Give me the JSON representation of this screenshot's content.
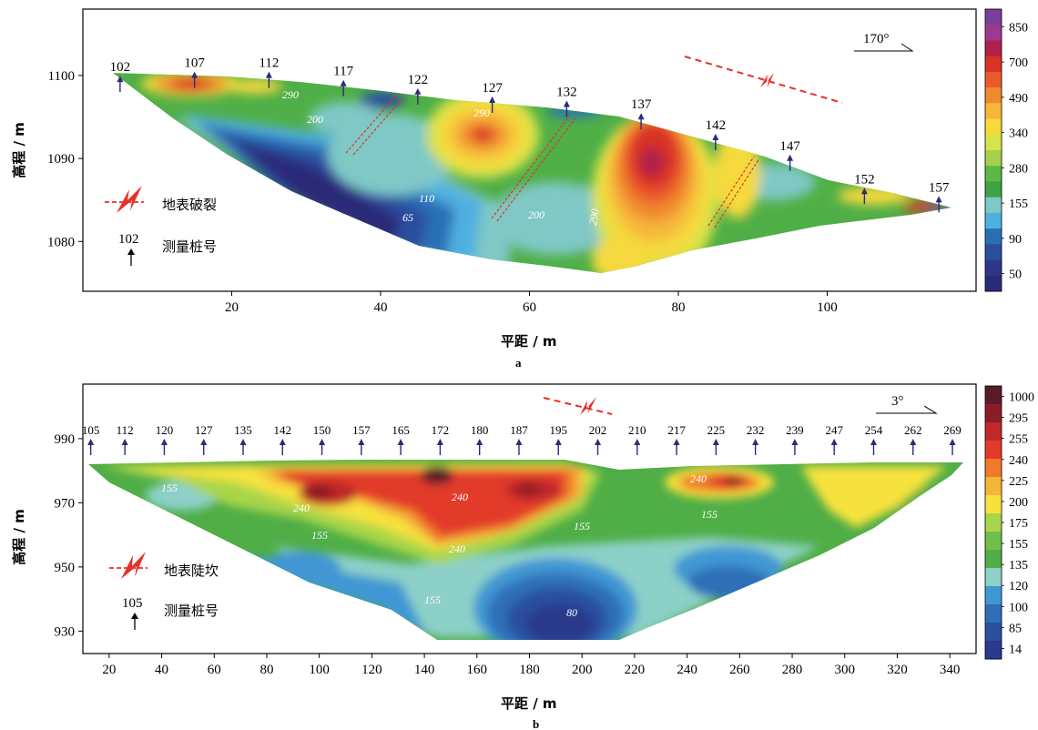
{
  "colors": {
    "stake": "#2b2b7a",
    "fracture": "#e8302a",
    "frame": "#000000"
  },
  "chart_data": [
    {
      "type": "heatmap",
      "panel": "a",
      "xlabel": "平距 / m",
      "ylabel": "高程 / m",
      "xlim": [
        0,
        120
      ],
      "ylim": [
        1074,
        1108
      ],
      "xticks": [
        20,
        40,
        60,
        80,
        100
      ],
      "yticks": [
        1080,
        1090,
        1100
      ],
      "direction": "170°",
      "colorbar": {
        "labels": [
          "850",
          "700",
          "490",
          "340",
          "280",
          "155",
          "90",
          "50"
        ],
        "colors": [
          "#7b3f9a",
          "#9c3a92",
          "#b0204a",
          "#d93226",
          "#ec5a2a",
          "#f08a2e",
          "#f5b73a",
          "#f5d93d",
          "#d8e34a",
          "#a3d24a",
          "#5cb748",
          "#3ea345",
          "#7fc8c6",
          "#4fb0e0",
          "#2a6fb5",
          "#2c4e9e",
          "#2c3887",
          "#2a2b78"
        ]
      },
      "stakes": [
        "102",
        "107",
        "112",
        "117",
        "122",
        "127",
        "132",
        "137",
        "142",
        "147",
        "152",
        "157"
      ],
      "stake_x": [
        5,
        15,
        25,
        35,
        45,
        55,
        65,
        75,
        85,
        95,
        105,
        115
      ],
      "stake_base_elev": [
        1098,
        1098.5,
        1098.5,
        1097.5,
        1096.5,
        1095.5,
        1095,
        1093.5,
        1091,
        1088.5,
        1084.5,
        1083.5
      ],
      "contour_labels": [
        "290",
        "200",
        "290",
        "110",
        "65",
        "200",
        "290"
      ],
      "legend": [
        {
          "icon": "fracture-icon",
          "text": "地表破裂"
        },
        {
          "icon": "stake-icon",
          "number": "102",
          "text": "测量桩号"
        }
      ],
      "panel_label": "a"
    },
    {
      "type": "heatmap",
      "panel": "b",
      "xlabel": "平距 / m",
      "ylabel": "高程 / m",
      "xlim": [
        10,
        350
      ],
      "ylim": [
        923,
        1007
      ],
      "xticks": [
        20,
        40,
        60,
        80,
        100,
        120,
        140,
        160,
        180,
        200,
        220,
        240,
        260,
        280,
        300,
        320,
        340
      ],
      "yticks": [
        930,
        950,
        970,
        990
      ],
      "direction": "3°",
      "colorbar": {
        "labels": [
          "1000",
          "295",
          "255",
          "240",
          "225",
          "200",
          "175",
          "155",
          "135",
          "120",
          "100",
          "85",
          "14"
        ],
        "colors": [
          "#5a1a2a",
          "#8b1e24",
          "#c0282a",
          "#e23b2c",
          "#f07a2c",
          "#f5b43a",
          "#f6e23c",
          "#a9d54a",
          "#6ec04a",
          "#4fae46",
          "#8cd0c8",
          "#3f97d3",
          "#2e6fb8",
          "#2c4f9f",
          "#2a3a8c"
        ]
      },
      "stakes": [
        "105",
        "112",
        "120",
        "127",
        "135",
        "142",
        "150",
        "157",
        "165",
        "172",
        "180",
        "187",
        "195",
        "202",
        "210",
        "217",
        "225",
        "232",
        "239",
        "247",
        "254",
        "262",
        "269"
      ],
      "stake_x": [
        13,
        26,
        41,
        56,
        71,
        86,
        101,
        116,
        131,
        146,
        161,
        176,
        191,
        206,
        221,
        236,
        251,
        266,
        281,
        296,
        311,
        326,
        341
      ],
      "contour_labels": [
        "155",
        "240",
        "155",
        "240",
        "240",
        "155",
        "240",
        "155",
        "155",
        "80"
      ],
      "legend": [
        {
          "icon": "fracture-icon",
          "text": "地表陡坎"
        },
        {
          "icon": "stake-icon",
          "number": "105",
          "text": "测量桩号"
        }
      ],
      "panel_label": "b"
    }
  ]
}
